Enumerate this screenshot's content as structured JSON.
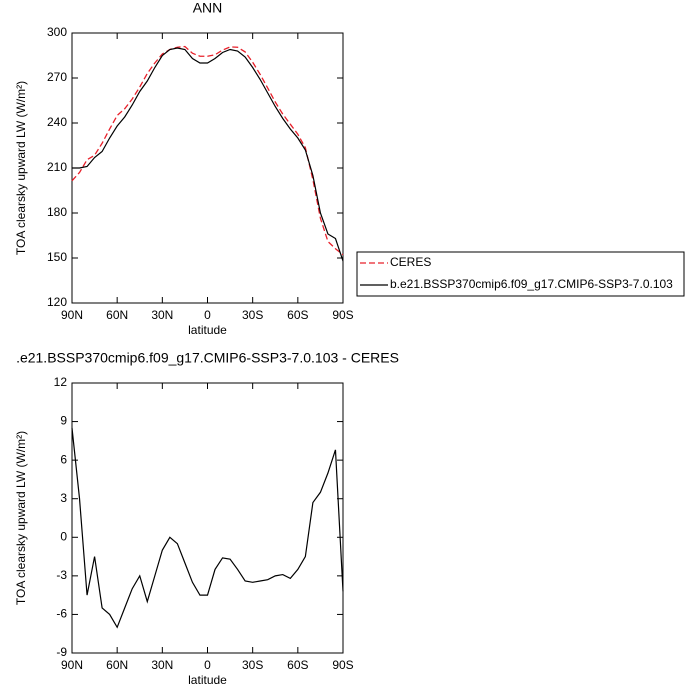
{
  "chart_data": [
    {
      "type": "line",
      "title": "ANN",
      "x_label": "latitude",
      "y_label": "TOA clearsky upward LW (W/m²)",
      "x": [
        90,
        85,
        80,
        75,
        70,
        65,
        60,
        55,
        50,
        45,
        40,
        35,
        30,
        25,
        20,
        15,
        10,
        5,
        0,
        -5,
        -10,
        -15,
        -20,
        -25,
        -30,
        -35,
        -40,
        -45,
        -50,
        -55,
        -60,
        -65,
        -70,
        -75,
        -80,
        -85,
        -90
      ],
      "series": [
        {
          "name": "CERES",
          "color": "#e8202a",
          "line_style": "dashed",
          "values": [
            201.5,
            207,
            215.5,
            218.5,
            226.5,
            236,
            245,
            249.5,
            256,
            264,
            273,
            280,
            286,
            289,
            290.5,
            291,
            286.5,
            284.5,
            284.5,
            285.5,
            288.6,
            290.7,
            290.5,
            287.4,
            280.5,
            272.4,
            263.3,
            254,
            245.9,
            239.2,
            232.5,
            223.5,
            202.3,
            176.5,
            161,
            156.2,
            152.2
          ]
        },
        {
          "name": "b.e21.BSSP370cmip6.f09_g17.CMIP6-SSP3-7.0.103",
          "color": "#000000",
          "line_style": "solid",
          "values": [
            210,
            210,
            211,
            217,
            221,
            230,
            238,
            244,
            252,
            261,
            268,
            277,
            285,
            289,
            290,
            289,
            283,
            280,
            280,
            283,
            287,
            289,
            288,
            284,
            277,
            269,
            260,
            251,
            243,
            236,
            230,
            222,
            205,
            180,
            166,
            163,
            148
          ]
        }
      ],
      "xlim": [
        90,
        -90
      ],
      "xticks": [
        {
          "value": 90,
          "label": "90N"
        },
        {
          "value": 60,
          "label": "60N"
        },
        {
          "value": 30,
          "label": "30N"
        },
        0,
        {
          "value": -30,
          "label": "30S"
        },
        {
          "value": -60,
          "label": "60S"
        },
        {
          "value": -90,
          "label": "90S"
        }
      ],
      "ylim": [
        120,
        300
      ],
      "yticks": [
        120,
        150,
        180,
        210,
        240,
        270,
        300
      ],
      "legend": "right"
    },
    {
      "type": "line",
      "title": ".e21.BSSP370cmip6.f09_g17.CMIP6-SSP3-7.0.103 - CERES",
      "x_label": "latitude",
      "y_label": "TOA clearsky upward LW (W/m²)",
      "x": [
        90,
        85,
        80,
        75,
        70,
        65,
        60,
        55,
        50,
        45,
        40,
        35,
        30,
        25,
        20,
        15,
        10,
        5,
        0,
        -5,
        -10,
        -15,
        -20,
        -25,
        -30,
        -35,
        -40,
        -45,
        -50,
        -55,
        -60,
        -65,
        -70,
        -75,
        -80,
        -85,
        -90
      ],
      "series": [
        {
          "color": "#000000",
          "line_style": "solid",
          "values": [
            8.5,
            3,
            -4.5,
            -1.5,
            -5.5,
            -6,
            -7,
            -5.5,
            -4,
            -3,
            -5,
            -3,
            -1,
            0,
            -0.5,
            -2,
            -3.5,
            -4.5,
            -4.5,
            -2.5,
            -1.6,
            -1.7,
            -2.5,
            -3.4,
            -3.5,
            -3.4,
            -3.3,
            -3,
            -2.9,
            -3.2,
            -2.5,
            -1.5,
            2.7,
            3.5,
            5,
            6.8,
            -4.2
          ]
        }
      ],
      "xlim": [
        90,
        -90
      ],
      "xticks": [
        {
          "value": 90,
          "label": "90N"
        },
        {
          "value": 60,
          "label": "60N"
        },
        {
          "value": 30,
          "label": "30N"
        },
        0,
        {
          "value": -30,
          "label": "30S"
        },
        {
          "value": -60,
          "label": "60S"
        },
        {
          "value": -90,
          "label": "90S"
        }
      ],
      "ylim": [
        -9,
        12
      ],
      "yticks": [
        -9,
        -6,
        -3,
        0,
        3,
        6,
        9,
        12
      ]
    }
  ]
}
